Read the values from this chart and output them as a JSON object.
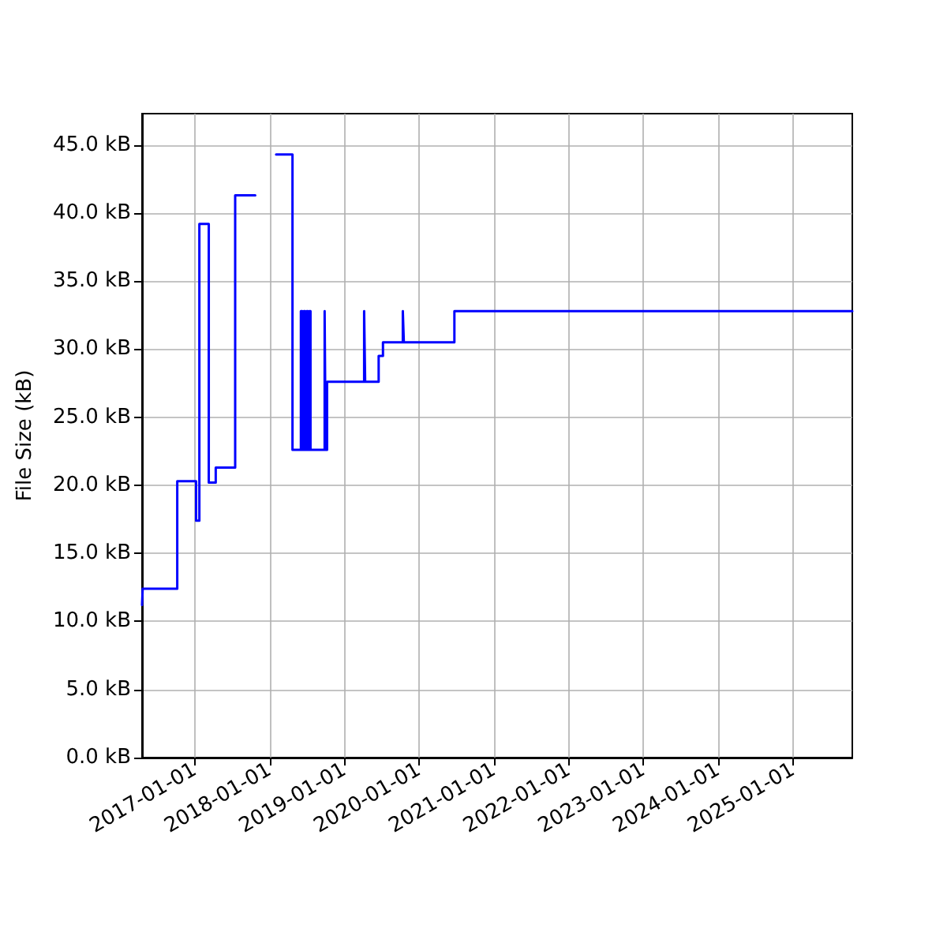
{
  "chart_data": {
    "type": "step",
    "ylabel": "File Size (kB)",
    "x": [
      "2016-04-17",
      "2016-04-20",
      "2016-10-06",
      "2017-01-06",
      "2017-01-22",
      "2017-03-09",
      "2017-04-12",
      "2017-07-16",
      "2017-10-22",
      "2017-10-23",
      "2018-02-01",
      "2018-04-22",
      "2018-06-02",
      "2018-06-09",
      "2018-06-16",
      "2018-06-23",
      "2018-06-30",
      "2018-07-07",
      "2018-07-13",
      "2018-07-19",
      "2018-09-26",
      "2018-10-01",
      "2018-10-08",
      "2019-04-07",
      "2019-04-12",
      "2019-06-17",
      "2019-07-08",
      "2019-10-13",
      "2019-10-18",
      "2020-06-21",
      "2025-10-17"
    ],
    "series": [
      {
        "color": "#0000ff",
        "values": [
          11.2,
          12.4,
          20.3,
          17.4,
          39.2,
          20.2,
          21.3,
          41.3,
          41.3,
          null,
          44.3,
          22.6,
          32.8,
          22.6,
          32.8,
          22.6,
          32.8,
          22.6,
          32.8,
          22.6,
          32.8,
          22.6,
          27.6,
          32.8,
          27.6,
          29.5,
          30.5,
          32.8,
          30.5,
          32.8,
          32.8
        ]
      }
    ],
    "xlim": [
      "2016-04-17",
      "2025-10-17"
    ],
    "xticks": [
      "2017-01-01",
      "2018-01-01",
      "2019-01-01",
      "2020-01-01",
      "2021-01-01",
      "2022-01-01",
      "2023-01-01",
      "2024-01-01",
      "2025-01-01"
    ],
    "ylim": [
      0,
      47.3
    ],
    "yticks": [
      {
        "value": 0,
        "label": "0.0 kB"
      },
      {
        "value": 5,
        "label": "5.0 kB"
      },
      {
        "value": 10,
        "label": "10.0 kB"
      },
      {
        "value": 15,
        "label": "15.0 kB"
      },
      {
        "value": 20,
        "label": "20.0 kB"
      },
      {
        "value": 25,
        "label": "25.0 kB"
      },
      {
        "value": 30,
        "label": "30.0 kB"
      },
      {
        "value": 35,
        "label": "35.0 kB"
      },
      {
        "value": 40,
        "label": "40.0 kB"
      },
      {
        "value": 45,
        "label": "45.0 kB"
      }
    ],
    "grid": true
  }
}
